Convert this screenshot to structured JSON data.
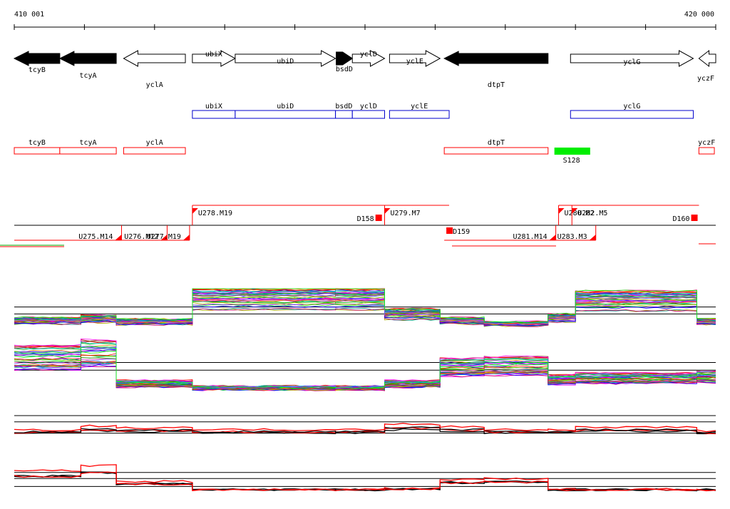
{
  "header": {
    "start_label": "410 001",
    "end_label": "420 000"
  },
  "axis": {
    "start": 410001,
    "end": 420000
  },
  "colors": {
    "gene_fill": "#000000",
    "gene_outline": "#000000",
    "blue": "#0000cc",
    "red": "#ff0000",
    "green": "#00ee00",
    "line": "#000000"
  },
  "genes": [
    {
      "name": "tcyB",
      "start": 410001,
      "end": 410650,
      "strand": "-",
      "filled": true
    },
    {
      "name": "tcyA",
      "start": 410650,
      "end": 411455,
      "strand": "-",
      "filled": true
    },
    {
      "name": "yclA",
      "start": 411560,
      "end": 412440,
      "strand": "-",
      "filled": false
    },
    {
      "name": "ubiX",
      "start": 412540,
      "end": 413150,
      "strand": "+",
      "filled": false
    },
    {
      "name": "ubiD",
      "start": 413150,
      "end": 414580,
      "strand": "+",
      "filled": false
    },
    {
      "name": "bsdD",
      "start": 414590,
      "end": 414820,
      "strand": "+",
      "filled": true
    },
    {
      "name": "yclD",
      "start": 414820,
      "end": 415280,
      "strand": "+",
      "filled": false
    },
    {
      "name": "yclE",
      "start": 415350,
      "end": 416070,
      "strand": "+",
      "filled": false
    },
    {
      "name": "dtpT",
      "start": 416130,
      "end": 417610,
      "strand": "-",
      "filled": true
    },
    {
      "name": "yclG",
      "start": 417930,
      "end": 419680,
      "strand": "+",
      "filled": false
    },
    {
      "name": "yczF",
      "start": 419760,
      "end": 420000,
      "strand": "-",
      "filled": false
    }
  ],
  "blue_boxes": [
    {
      "name": "ubiX",
      "start": 412540,
      "end": 413150
    },
    {
      "name": "ubiD",
      "start": 413150,
      "end": 414580
    },
    {
      "name": "bsdD",
      "start": 414580,
      "end": 414820
    },
    {
      "name": "yclD",
      "start": 414820,
      "end": 415280
    },
    {
      "name": "yclE",
      "start": 415350,
      "end": 416200
    },
    {
      "name": "yclG",
      "start": 417930,
      "end": 419680
    }
  ],
  "red_boxes": [
    {
      "name": "tcyB",
      "start": 410001,
      "end": 410650
    },
    {
      "name": "tcyA",
      "start": 410650,
      "end": 411455
    },
    {
      "name": "yclA",
      "start": 411560,
      "end": 412440
    },
    {
      "name": "dtpT",
      "start": 416130,
      "end": 417610
    },
    {
      "name": "yczF",
      "start": 419760,
      "end": 419980
    }
  ],
  "green_marker": {
    "name": "S128",
    "start": 417700,
    "end": 418210
  },
  "transcripts_top": [
    {
      "label": "U278.M19",
      "start": 412540,
      "end": 415300
    },
    {
      "label": "U279.M7",
      "start": 415280,
      "end": 416200
    },
    {
      "label": "U280.M2",
      "start": 417760,
      "end": 419760
    },
    {
      "label": "U282.M5",
      "start": 417950,
      "end": 419760
    }
  ],
  "transcripts_bottom": [
    {
      "label": "U275.M14",
      "start": 410001,
      "end": 411530
    },
    {
      "label": "U276.M12",
      "start": 411530,
      "end": 412180
    },
    {
      "label": "U277.M19",
      "start": 411560,
      "end": 412500
    },
    {
      "label": "U281.M14",
      "start": 416130,
      "end": 417720
    },
    {
      "label": "U283.M3",
      "start": 417720,
      "end": 418290
    }
  ],
  "down_markers": [
    {
      "label": "D158",
      "pos": 415150
    },
    {
      "label": "D159",
      "pos": 416160
    },
    {
      "label": "D160",
      "pos": 419650
    }
  ],
  "profile_levels": {
    "breakpoints": [
      410001,
      410950,
      411455,
      412540,
      414580,
      415280,
      416070,
      416700,
      417610,
      418000,
      419730,
      420000
    ],
    "panel1": [
      0.45,
      0.55,
      0.4,
      1.6,
      1.6,
      0.8,
      0.45,
      0.3,
      0.6,
      1.5,
      0.4
    ],
    "panel2": [
      1.3,
      1.45,
      0.35,
      0.2,
      0.2,
      0.35,
      0.95,
      1.0,
      0.5,
      0.55,
      0.6
    ],
    "panel3": [
      0.5,
      0.85,
      0.7,
      0.55,
      0.55,
      1.0,
      0.8,
      0.55,
      0.55,
      0.75,
      0.45
    ],
    "panel4": [
      1.0,
      1.25,
      0.45,
      0.05,
      0.05,
      0.1,
      0.55,
      0.6,
      0.05,
      0.05,
      0.05
    ]
  }
}
